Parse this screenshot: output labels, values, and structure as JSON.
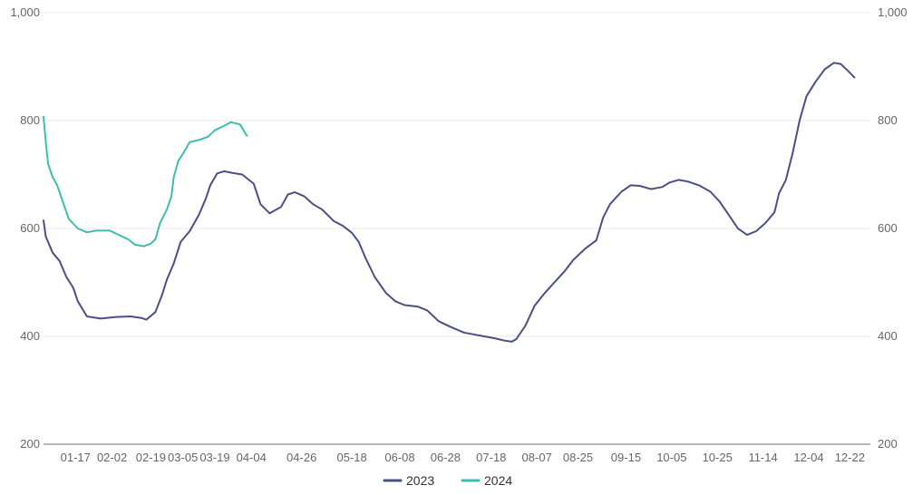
{
  "chart_data": {
    "type": "line",
    "title": "",
    "xlabel": "",
    "ylabel": "",
    "ylim": [
      200,
      1000
    ],
    "y_ticks": [
      200,
      400,
      600,
      800,
      1000
    ],
    "y_tick_labels": [
      "200",
      "400",
      "600",
      "800",
      "1,000"
    ],
    "x_tick_labels": [
      "01-17",
      "02-02",
      "02-19",
      "03-05",
      "03-19",
      "04-04",
      "04-26",
      "05-18",
      "06-08",
      "06-28",
      "07-18",
      "08-07",
      "08-25",
      "09-15",
      "10-05",
      "10-25",
      "11-14",
      "12-04",
      "12-22"
    ],
    "x_range": [
      "01-03",
      "12-31"
    ],
    "grid": true,
    "legend_position": "bottom",
    "series": [
      {
        "name": "2023",
        "color": "#4a5085",
        "points": [
          [
            "01-03",
            615
          ],
          [
            "01-04",
            585
          ],
          [
            "01-07",
            555
          ],
          [
            "01-10",
            540
          ],
          [
            "01-13",
            510
          ],
          [
            "01-16",
            490
          ],
          [
            "01-18",
            465
          ],
          [
            "01-22",
            437
          ],
          [
            "01-28",
            433
          ],
          [
            "02-04",
            436
          ],
          [
            "02-10",
            437
          ],
          [
            "02-15",
            434
          ],
          [
            "02-17",
            431
          ],
          [
            "02-21",
            445
          ],
          [
            "02-24",
            478
          ],
          [
            "02-26",
            505
          ],
          [
            "03-01",
            535
          ],
          [
            "03-04",
            575
          ],
          [
            "03-08",
            595
          ],
          [
            "03-12",
            625
          ],
          [
            "03-15",
            655
          ],
          [
            "03-17",
            680
          ],
          [
            "03-20",
            702
          ],
          [
            "03-23",
            706
          ],
          [
            "03-28",
            702
          ],
          [
            "03-31",
            700
          ],
          [
            "04-05",
            683
          ],
          [
            "04-08",
            645
          ],
          [
            "04-12",
            628
          ],
          [
            "04-17",
            640
          ],
          [
            "04-20",
            663
          ],
          [
            "04-23",
            667
          ],
          [
            "04-27",
            660
          ],
          [
            "05-01",
            645
          ],
          [
            "05-05",
            635
          ],
          [
            "05-10",
            614
          ],
          [
            "05-14",
            605
          ],
          [
            "05-18",
            592
          ],
          [
            "05-21",
            575
          ],
          [
            "05-24",
            545
          ],
          [
            "05-28",
            510
          ],
          [
            "06-02",
            480
          ],
          [
            "06-06",
            465
          ],
          [
            "06-10",
            458
          ],
          [
            "06-16",
            455
          ],
          [
            "06-20",
            448
          ],
          [
            "06-25",
            428
          ],
          [
            "06-30",
            418
          ],
          [
            "07-06",
            407
          ],
          [
            "07-11",
            403
          ],
          [
            "07-15",
            400
          ],
          [
            "07-20",
            396
          ],
          [
            "07-24",
            392
          ],
          [
            "07-27",
            390
          ],
          [
            "07-29",
            395
          ],
          [
            "08-02",
            420
          ],
          [
            "08-06",
            457
          ],
          [
            "08-10",
            478
          ],
          [
            "08-14",
            497
          ],
          [
            "08-19",
            520
          ],
          [
            "08-23",
            542
          ],
          [
            "08-28",
            562
          ],
          [
            "09-02",
            578
          ],
          [
            "09-05",
            620
          ],
          [
            "09-08",
            645
          ],
          [
            "09-13",
            668
          ],
          [
            "09-17",
            680
          ],
          [
            "09-21",
            679
          ],
          [
            "09-26",
            673
          ],
          [
            "10-01",
            677
          ],
          [
            "10-04",
            685
          ],
          [
            "10-08",
            690
          ],
          [
            "10-12",
            687
          ],
          [
            "10-17",
            680
          ],
          [
            "10-22",
            668
          ],
          [
            "10-26",
            650
          ],
          [
            "10-30",
            625
          ],
          [
            "11-03",
            600
          ],
          [
            "11-07",
            588
          ],
          [
            "11-11",
            595
          ],
          [
            "11-15",
            610
          ],
          [
            "11-19",
            630
          ],
          [
            "11-21",
            665
          ],
          [
            "11-24",
            690
          ],
          [
            "11-27",
            740
          ],
          [
            "11-30",
            800
          ],
          [
            "12-03",
            845
          ],
          [
            "12-07",
            872
          ],
          [
            "12-11",
            895
          ],
          [
            "12-15",
            907
          ],
          [
            "12-18",
            905
          ],
          [
            "12-21",
            893
          ],
          [
            "12-24",
            880
          ]
        ]
      },
      {
        "name": "2024",
        "color": "#3cbdad",
        "points": [
          [
            "01-03",
            807
          ],
          [
            "01-04",
            760
          ],
          [
            "01-05",
            720
          ],
          [
            "01-07",
            695
          ],
          [
            "01-09",
            680
          ],
          [
            "01-11",
            655
          ],
          [
            "01-14",
            618
          ],
          [
            "01-18",
            600
          ],
          [
            "01-22",
            593
          ],
          [
            "01-26",
            596
          ],
          [
            "02-01",
            596
          ],
          [
            "02-05",
            588
          ],
          [
            "02-09",
            580
          ],
          [
            "02-12",
            570
          ],
          [
            "02-16",
            567
          ],
          [
            "02-19",
            572
          ],
          [
            "02-21",
            580
          ],
          [
            "02-23",
            610
          ],
          [
            "02-26",
            635
          ],
          [
            "02-28",
            660
          ],
          [
            "03-01",
            695
          ],
          [
            "03-03",
            725
          ],
          [
            "03-06",
            745
          ],
          [
            "03-08",
            760
          ],
          [
            "03-12",
            764
          ],
          [
            "03-16",
            770
          ],
          [
            "03-19",
            782
          ],
          [
            "03-23",
            790
          ],
          [
            "03-26",
            797
          ],
          [
            "03-30",
            793
          ],
          [
            "04-02",
            772
          ]
        ]
      }
    ]
  }
}
